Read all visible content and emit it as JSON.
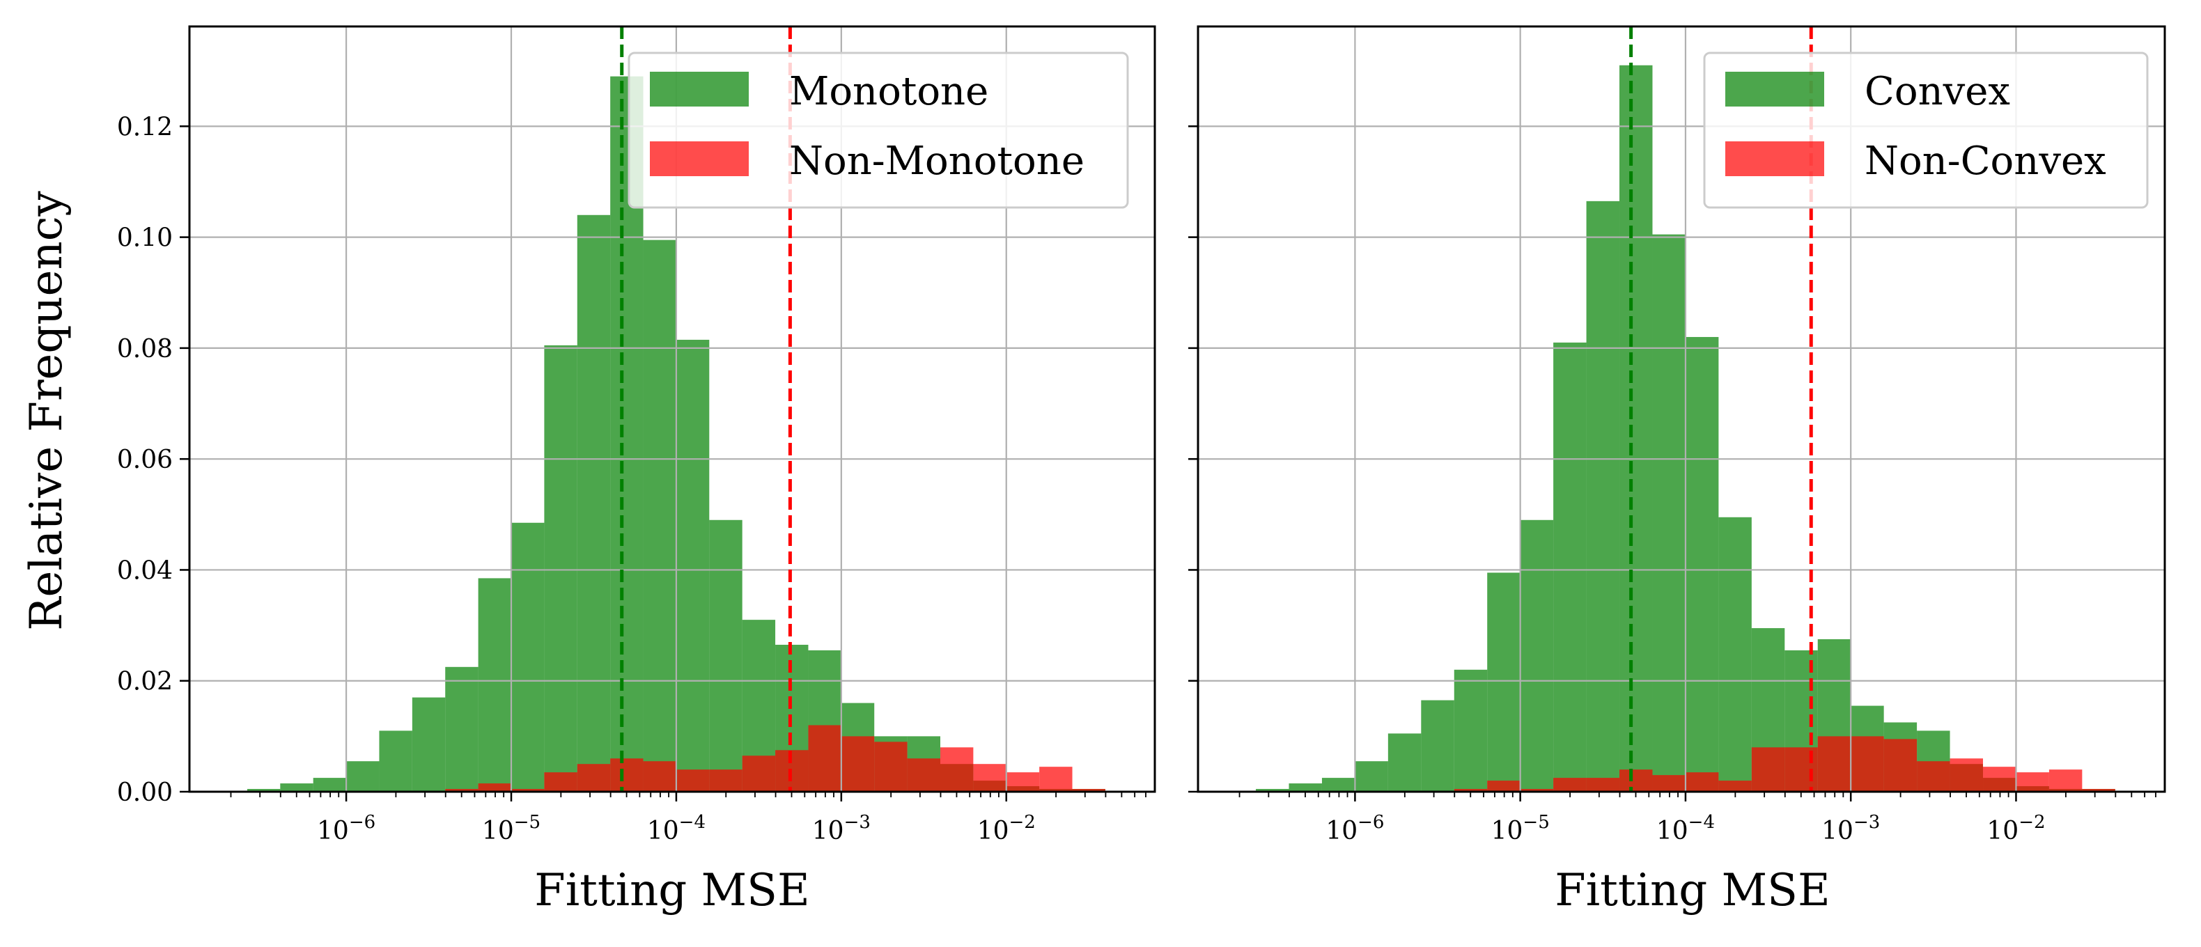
{
  "chart_data": [
    {
      "type": "histogram",
      "xscale": "log",
      "xlabel": "Fitting MSE",
      "ylabel": "Relative Frequency",
      "xlim_log10": [
        -6.95,
        -1.1
      ],
      "ylim": [
        0,
        0.138
      ],
      "yticks": [
        0.0,
        0.02,
        0.04,
        0.06,
        0.08,
        0.1,
        0.12
      ],
      "ytick_labels": [
        "0.00",
        "0.02",
        "0.04",
        "0.06",
        "0.08",
        "0.10",
        "0.12"
      ],
      "xtick_exponents": [
        "−6",
        "−5",
        "−4",
        "−3",
        "−2"
      ],
      "xtick_base": "10",
      "grid": true,
      "legend_location": "upper right",
      "bin_edges_log10": [
        -6.6,
        -6.4,
        -6.2,
        -6.0,
        -5.8,
        -5.6,
        -5.4,
        -5.2,
        -5.0,
        -4.8,
        -4.6,
        -4.4,
        -4.2,
        -4.0,
        -3.8,
        -3.6,
        -3.4,
        -3.2,
        -3.0,
        -2.8,
        -2.6,
        -2.4,
        -2.2,
        -2.0,
        -1.8,
        -1.6,
        -1.4
      ],
      "series": [
        {
          "name": "Monotone",
          "color": "#008000",
          "values": [
            0.0005,
            0.0015,
            0.0025,
            0.0055,
            0.011,
            0.017,
            0.0225,
            0.0385,
            0.0485,
            0.0805,
            0.104,
            0.129,
            0.0995,
            0.0815,
            0.049,
            0.031,
            0.0265,
            0.0255,
            0.016,
            0.01,
            0.01,
            0.005,
            0.002,
            0.001,
            0.0005,
            0.0005
          ]
        },
        {
          "name": "Non-Monotone",
          "color": "#ff0000",
          "values": [
            0.0,
            0.0,
            0.0,
            0.0,
            0.0,
            0.0,
            0.0005,
            0.0015,
            0.0005,
            0.0035,
            0.005,
            0.006,
            0.0055,
            0.004,
            0.004,
            0.0065,
            0.0075,
            0.012,
            0.01,
            0.009,
            0.006,
            0.008,
            0.005,
            0.0035,
            0.0045,
            0.0005
          ]
        }
      ],
      "vlines": [
        {
          "log10_x": -4.33,
          "color": "#008000",
          "style": "dashed"
        },
        {
          "log10_x": -3.31,
          "color": "#ff0000",
          "style": "dashed"
        }
      ]
    },
    {
      "type": "histogram",
      "xscale": "log",
      "xlabel": "Fitting MSE",
      "ylabel": "",
      "xlim_log10": [
        -6.95,
        -1.1
      ],
      "ylim": [
        0,
        0.138
      ],
      "yticks": [
        0.0,
        0.02,
        0.04,
        0.06,
        0.08,
        0.1,
        0.12
      ],
      "xtick_exponents": [
        "−6",
        "−5",
        "−4",
        "−3",
        "−2"
      ],
      "xtick_base": "10",
      "grid": true,
      "legend_location": "upper right",
      "bin_edges_log10": [
        -6.6,
        -6.4,
        -6.2,
        -6.0,
        -5.8,
        -5.6,
        -5.4,
        -5.2,
        -5.0,
        -4.8,
        -4.6,
        -4.4,
        -4.2,
        -4.0,
        -3.8,
        -3.6,
        -3.4,
        -3.2,
        -3.0,
        -2.8,
        -2.6,
        -2.4,
        -2.2,
        -2.0,
        -1.8,
        -1.6,
        -1.4
      ],
      "series": [
        {
          "name": "Convex",
          "color": "#008000",
          "values": [
            0.0005,
            0.0015,
            0.0025,
            0.0055,
            0.0105,
            0.0165,
            0.022,
            0.0395,
            0.049,
            0.081,
            0.1065,
            0.131,
            0.1005,
            0.082,
            0.0495,
            0.0295,
            0.0255,
            0.0275,
            0.0155,
            0.0125,
            0.011,
            0.005,
            0.0025,
            0.001,
            0.0005,
            0.0005
          ]
        },
        {
          "name": "Non-Convex",
          "color": "#ff0000",
          "values": [
            0.0,
            0.0,
            0.0,
            0.0,
            0.0,
            0.0,
            0.0005,
            0.002,
            0.0005,
            0.0025,
            0.0025,
            0.004,
            0.003,
            0.0035,
            0.002,
            0.008,
            0.008,
            0.01,
            0.01,
            0.0095,
            0.0055,
            0.006,
            0.0045,
            0.0035,
            0.004,
            0.0005
          ]
        }
      ],
      "vlines": [
        {
          "log10_x": -4.33,
          "color": "#008000",
          "style": "dashed"
        },
        {
          "log10_x": -3.24,
          "color": "#ff0000",
          "style": "dashed"
        }
      ]
    }
  ]
}
